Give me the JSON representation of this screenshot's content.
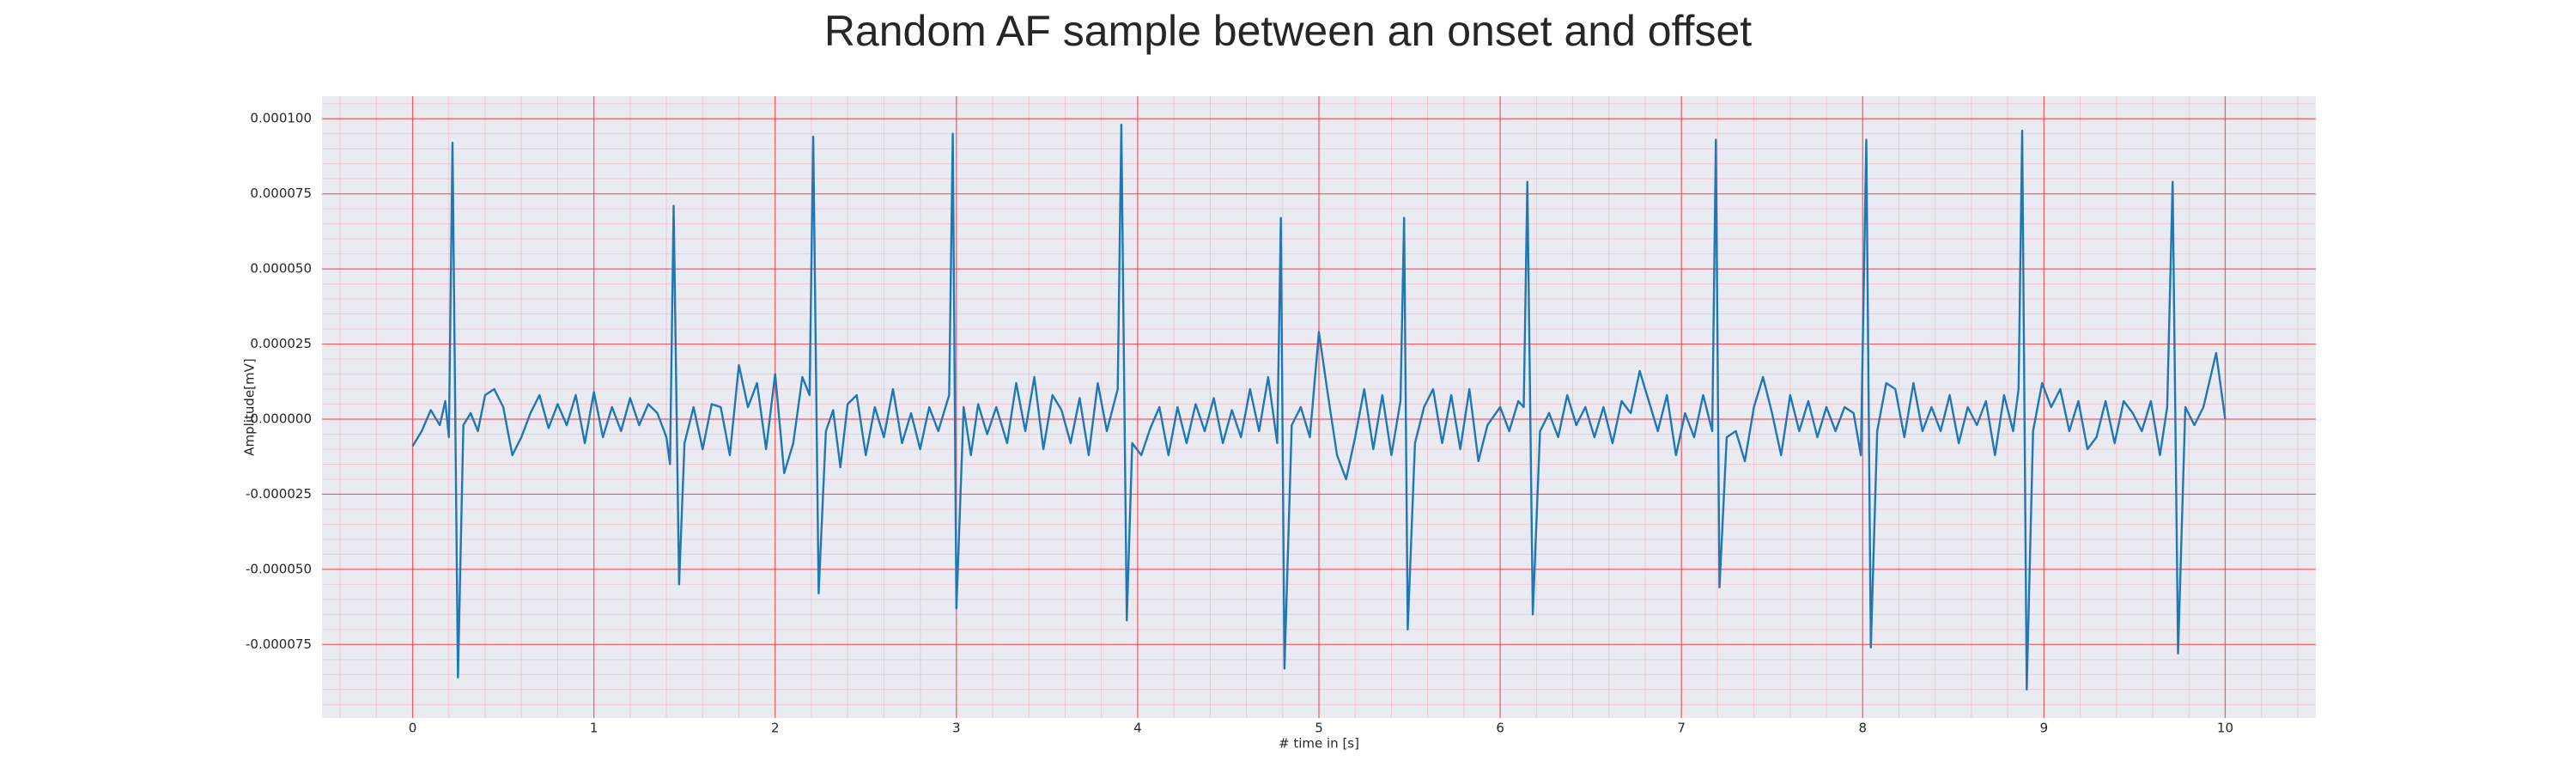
{
  "chart_data": {
    "type": "line",
    "title": "Random AF sample between an onset and offset",
    "xlabel": "# time in [s]",
    "ylabel": "Amplitude[mV]",
    "xlim": [
      -0.5,
      10.5
    ],
    "ylim": [
      -9.95e-05,
      0.0001075
    ],
    "xticks": [
      0,
      1,
      2,
      3,
      4,
      5,
      6,
      7,
      8,
      9,
      10
    ],
    "yticks": [
      {
        "value": 0.0001,
        "label": "0.000100"
      },
      {
        "value": 7.5e-05,
        "label": "0.000075"
      },
      {
        "value": 5e-05,
        "label": "0.000050"
      },
      {
        "value": 2.5e-05,
        "label": "0.000025"
      },
      {
        "value": 0,
        "label": "0.000000"
      },
      {
        "value": -2.5e-05,
        "label": "-0.000025"
      },
      {
        "value": -5e-05,
        "label": "-0.000050"
      },
      {
        "value": -7.5e-05,
        "label": "-0.000075"
      }
    ],
    "grid": true,
    "minor_grid": true,
    "grid_color": "#ff3b3b",
    "background": "#eaeaf2",
    "series": [
      {
        "color": "#1f77b4",
        "x": [
          0.0,
          0.05,
          0.1,
          0.15,
          0.18,
          0.2,
          0.22,
          0.25,
          0.28,
          0.32,
          0.36,
          0.4,
          0.45,
          0.5,
          0.55,
          0.6,
          0.65,
          0.7,
          0.75,
          0.8,
          0.85,
          0.9,
          0.95,
          1.0,
          1.05,
          1.1,
          1.15,
          1.2,
          1.25,
          1.3,
          1.35,
          1.4,
          1.42,
          1.44,
          1.47,
          1.5,
          1.55,
          1.6,
          1.65,
          1.7,
          1.75,
          1.8,
          1.85,
          1.9,
          1.95,
          2.0,
          2.05,
          2.1,
          2.15,
          2.19,
          2.21,
          2.24,
          2.28,
          2.32,
          2.36,
          2.4,
          2.45,
          2.5,
          2.55,
          2.6,
          2.65,
          2.7,
          2.75,
          2.8,
          2.85,
          2.9,
          2.96,
          2.98,
          3.0,
          3.04,
          3.08,
          3.12,
          3.17,
          3.22,
          3.28,
          3.33,
          3.38,
          3.43,
          3.48,
          3.53,
          3.58,
          3.63,
          3.68,
          3.73,
          3.78,
          3.83,
          3.89,
          3.91,
          3.94,
          3.97,
          4.02,
          4.07,
          4.12,
          4.17,
          4.22,
          4.27,
          4.32,
          4.37,
          4.42,
          4.47,
          4.52,
          4.57,
          4.62,
          4.67,
          4.72,
          4.77,
          4.79,
          4.81,
          4.85,
          4.9,
          4.95,
          5.0,
          5.05,
          5.1,
          5.15,
          5.2,
          5.25,
          5.3,
          5.35,
          5.4,
          5.45,
          5.47,
          5.49,
          5.53,
          5.58,
          5.63,
          5.68,
          5.73,
          5.78,
          5.83,
          5.88,
          5.93,
          6.0,
          6.05,
          6.1,
          6.13,
          6.15,
          6.18,
          6.22,
          6.27,
          6.32,
          6.37,
          6.42,
          6.47,
          6.52,
          6.57,
          6.62,
          6.67,
          6.72,
          6.77,
          6.82,
          6.87,
          6.92,
          6.97,
          7.02,
          7.07,
          7.12,
          7.17,
          7.19,
          7.21,
          7.25,
          7.3,
          7.35,
          7.4,
          7.45,
          7.5,
          7.55,
          7.6,
          7.65,
          7.7,
          7.75,
          7.8,
          7.85,
          7.9,
          7.95,
          7.99,
          8.02,
          8.045,
          8.08,
          8.13,
          8.18,
          8.23,
          8.28,
          8.33,
          8.38,
          8.43,
          8.48,
          8.53,
          8.58,
          8.63,
          8.68,
          8.73,
          8.78,
          8.83,
          8.86,
          8.88,
          8.905,
          8.94,
          8.99,
          9.04,
          9.09,
          9.14,
          9.19,
          9.24,
          9.29,
          9.34,
          9.39,
          9.44,
          9.49,
          9.54,
          9.59,
          9.64,
          9.68,
          9.71,
          9.74,
          9.78,
          9.83,
          9.88,
          9.95,
          10.0
        ],
        "values": [
          -9e-06,
          -4e-06,
          3e-06,
          -2e-06,
          6e-06,
          -6e-06,
          9.2e-05,
          -8.6e-05,
          -2e-06,
          2e-06,
          -4e-06,
          8e-06,
          1e-05,
          4e-06,
          -1.2e-05,
          -6e-06,
          2e-06,
          8e-06,
          -3e-06,
          5e-06,
          -2e-06,
          8e-06,
          -8e-06,
          9e-06,
          -6e-06,
          4e-06,
          -4e-06,
          7e-06,
          -2e-06,
          5e-06,
          2e-06,
          -6e-06,
          -1.5e-05,
          7.1e-05,
          -5.5e-05,
          -8e-06,
          4e-06,
          -1e-05,
          5e-06,
          4e-06,
          -1.2e-05,
          1.8e-05,
          4e-06,
          1.2e-05,
          -1e-05,
          1.5e-05,
          -1.8e-05,
          -8e-06,
          1.4e-05,
          8e-06,
          9.4e-05,
          -5.8e-05,
          -4e-06,
          3e-06,
          -1.6e-05,
          5e-06,
          8e-06,
          -1.2e-05,
          4e-06,
          -6e-06,
          1e-05,
          -8e-06,
          2e-06,
          -1e-05,
          4e-06,
          -4e-06,
          8e-06,
          9.5e-05,
          -6.3e-05,
          4e-06,
          -1.2e-05,
          5e-06,
          -5e-06,
          4e-06,
          -8e-06,
          1.2e-05,
          -4e-06,
          1.4e-05,
          -1e-05,
          8e-06,
          3e-06,
          -8e-06,
          7e-06,
          -1.2e-05,
          1.2e-05,
          -4e-06,
          1e-05,
          9.8e-05,
          -6.7e-05,
          -8e-06,
          -1.2e-05,
          -3e-06,
          4e-06,
          -1.2e-05,
          4e-06,
          -8e-06,
          5e-06,
          -4e-06,
          7e-06,
          -8e-06,
          3e-06,
          -6e-06,
          1e-05,
          -4e-06,
          1.4e-05,
          -8e-06,
          6.7e-05,
          -8.3e-05,
          -2e-06,
          4e-06,
          -6e-06,
          2.9e-05,
          8e-06,
          -1.2e-05,
          -2e-05,
          -6e-06,
          1e-05,
          -1e-05,
          8e-06,
          -1.2e-05,
          6e-06,
          6.7e-05,
          -7e-05,
          -8e-06,
          4e-06,
          1e-05,
          -8e-06,
          8e-06,
          -1e-05,
          1e-05,
          -1.4e-05,
          -2e-06,
          4e-06,
          -4e-06,
          6e-06,
          4e-06,
          7.9e-05,
          -6.5e-05,
          -4e-06,
          2e-06,
          -6e-06,
          8e-06,
          -2e-06,
          4e-06,
          -6e-06,
          4e-06,
          -8e-06,
          6e-06,
          2e-06,
          1.6e-05,
          6e-06,
          -4e-06,
          8e-06,
          -1.2e-05,
          2e-06,
          -6e-06,
          8e-06,
          -4e-06,
          9.3e-05,
          -5.6e-05,
          -6e-06,
          -4e-06,
          -1.4e-05,
          4e-06,
          1.4e-05,
          2e-06,
          -1.2e-05,
          8e-06,
          -4e-06,
          6e-06,
          -6e-06,
          4e-06,
          -4e-06,
          4e-06,
          2e-06,
          -1.2e-05,
          9.3e-05,
          -7.6e-05,
          -4e-06,
          1.2e-05,
          1e-05,
          -6e-06,
          1.2e-05,
          -4e-06,
          4e-06,
          -4e-06,
          8e-06,
          -8e-06,
          4e-06,
          -2e-06,
          6e-06,
          -1.2e-05,
          8e-06,
          -4e-06,
          1e-05,
          9.6e-05,
          -9e-05,
          -4e-06,
          1.2e-05,
          4e-06,
          1e-05,
          -4e-06,
          6e-06,
          -1e-05,
          -6e-06,
          6e-06,
          -8e-06,
          6e-06,
          2e-06,
          -4e-06,
          6e-06,
          -1.2e-05,
          4e-06,
          7.9e-05,
          -7.8e-05,
          4e-06,
          -2e-06,
          4e-06,
          2.2e-05,
          0.0
        ]
      }
    ]
  }
}
